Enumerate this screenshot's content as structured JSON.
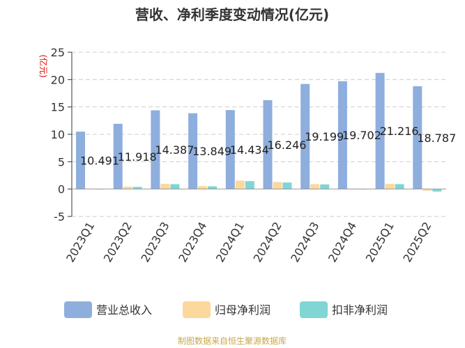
{
  "chart_data": {
    "type": "bar",
    "title": "营收、净利季度变动情况(亿元)",
    "unit_label": "(亿元)",
    "categories": [
      "2023Q1",
      "2023Q2",
      "2023Q3",
      "2023Q4",
      "2024Q1",
      "2024Q2",
      "2024Q3",
      "2024Q4",
      "2025Q1",
      "2025Q2"
    ],
    "series": [
      {
        "name": "营业总收入",
        "color": "#8eaedd",
        "values": [
          10.491,
          11.918,
          14.387,
          13.849,
          14.434,
          16.246,
          19.199,
          19.702,
          21.216,
          18.787
        ]
      },
      {
        "name": "归母净利润",
        "color": "#fcd89c",
        "values": [
          0.1,
          0.45,
          0.95,
          0.55,
          1.55,
          1.3,
          0.9,
          0.1,
          0.95,
          -0.3
        ]
      },
      {
        "name": "扣非净利润",
        "color": "#7fd6d4",
        "values": [
          0.05,
          0.4,
          0.9,
          0.5,
          1.45,
          1.2,
          0.85,
          0.05,
          0.9,
          -0.45
        ]
      }
    ],
    "data_labels": [
      "10.491",
      "11.918",
      "14.387",
      "13.849",
      "14.434",
      "16.246",
      "19.199",
      "19.702",
      "21.216",
      "18.787"
    ],
    "yticks": [
      -5,
      0,
      5,
      10,
      15,
      20,
      25
    ],
    "ylim": [
      -5,
      25
    ],
    "grid": true,
    "legend_position": "bottom"
  },
  "source_text": "制图数据来自恒生聚源数据库"
}
